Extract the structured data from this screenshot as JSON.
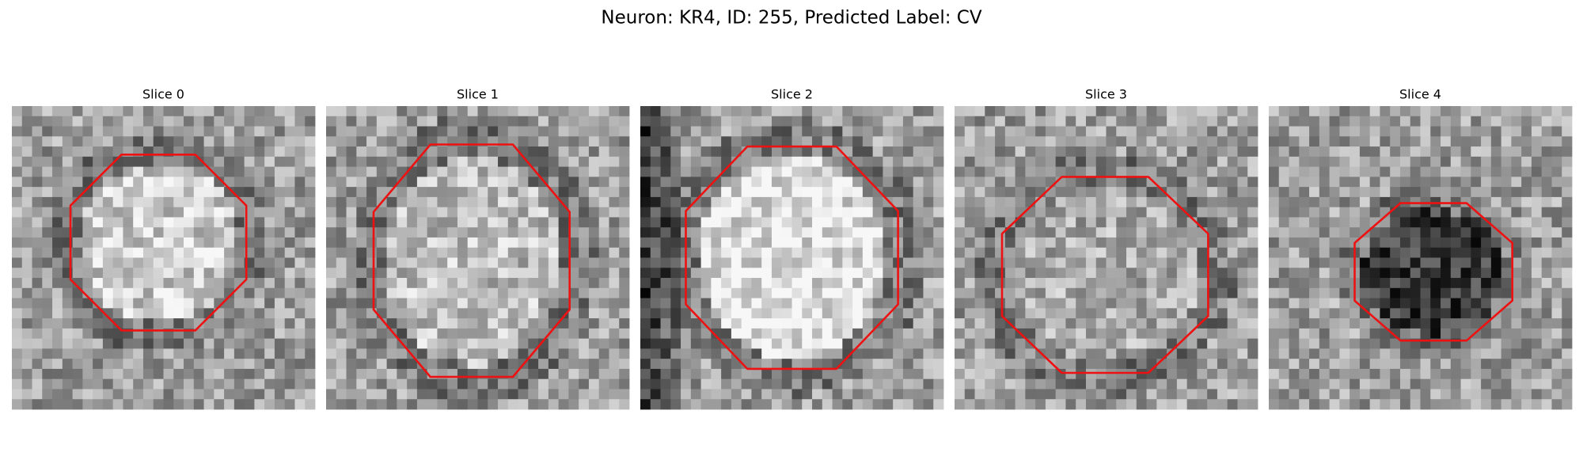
{
  "title": "Neuron: KR4, ID: 255, Predicted Label: CV",
  "panels": [
    {
      "title": "Slice 0"
    },
    {
      "title": "Slice 1"
    },
    {
      "title": "Slice 2"
    },
    {
      "title": "Slice 3"
    },
    {
      "title": "Slice 4"
    }
  ]
}
